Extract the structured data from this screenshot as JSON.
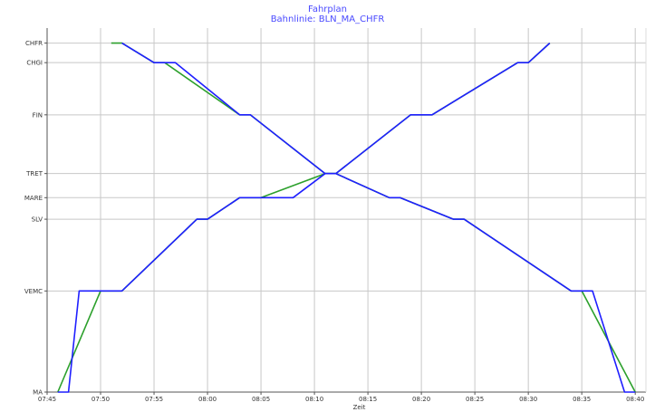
{
  "chart_data": {
    "type": "line",
    "title": "Fahrplan",
    "subtitle": "Bahnlinie: BLN_MA_CHFR",
    "xlabel": "Zeit",
    "ylabel": "",
    "x_ticks": [
      "07:45",
      "07:50",
      "07:55",
      "08:00",
      "08:05",
      "08:10",
      "08:15",
      "08:20",
      "08:25",
      "08:30",
      "08:35",
      "08:40"
    ],
    "x_range": [
      "07:45",
      "08:41"
    ],
    "y_stations": [
      {
        "name": "MA",
        "km": 0
      },
      {
        "name": "VEMC",
        "km": 15.5
      },
      {
        "name": "SLV",
        "km": 26.5
      },
      {
        "name": "MARE",
        "km": 29.8
      },
      {
        "name": "TRET",
        "km": 33.5
      },
      {
        "name": "FIN",
        "km": 42.5
      },
      {
        "name": "CHGI",
        "km": 50.5
      },
      {
        "name": "CHFR",
        "km": 53.5
      }
    ],
    "grid": true,
    "colors": {
      "planned": "#2ca02c",
      "actual": "#1f1fff",
      "title": "#4a4aff",
      "grid": "#c8c8c8"
    },
    "series": [
      {
        "color": "#2ca02c",
        "points": [
          [
            "07:46",
            "MA"
          ],
          [
            "07:50",
            "VEMC"
          ],
          [
            "07:52",
            "VEMC"
          ],
          [
            "07:59",
            "SLV"
          ],
          [
            "08:00",
            "SLV"
          ],
          [
            "08:03",
            "MARE"
          ],
          [
            "08:05",
            "MARE"
          ],
          [
            "08:11",
            "TRET"
          ],
          [
            "08:12",
            "TRET"
          ],
          [
            "08:19",
            "FIN"
          ],
          [
            "08:21",
            "FIN"
          ],
          [
            "08:29",
            "CHGI"
          ],
          [
            "08:30",
            "CHGI"
          ],
          [
            "08:32",
            "CHFR"
          ]
        ]
      },
      {
        "color": "#1f1fff",
        "points": [
          [
            "07:46",
            "MA"
          ],
          [
            "07:47",
            "MA"
          ],
          [
            "07:48",
            "VEMC"
          ],
          [
            "07:50",
            "VEMC"
          ],
          [
            "07:52",
            "VEMC"
          ],
          [
            "07:59",
            "SLV"
          ],
          [
            "08:00",
            "SLV"
          ],
          [
            "08:03",
            "MARE"
          ],
          [
            "08:05",
            "MARE"
          ],
          [
            "08:08",
            "MARE"
          ],
          [
            "08:11",
            "TRET"
          ],
          [
            "08:12",
            "TRET"
          ],
          [
            "08:19",
            "FIN"
          ],
          [
            "08:21",
            "FIN"
          ],
          [
            "08:29",
            "CHGI"
          ],
          [
            "08:30",
            "CHGI"
          ],
          [
            "08:32",
            "CHFR"
          ]
        ]
      },
      {
        "color": "#2ca02c",
        "points": [
          [
            "07:51",
            "CHFR"
          ],
          [
            "07:52",
            "CHFR"
          ],
          [
            "07:55",
            "CHGI"
          ],
          [
            "07:56",
            "CHGI"
          ],
          [
            "08:03",
            "FIN"
          ],
          [
            "08:04",
            "FIN"
          ],
          [
            "08:11",
            "TRET"
          ],
          [
            "08:12",
            "TRET"
          ],
          [
            "08:17",
            "MARE"
          ],
          [
            "08:18",
            "MARE"
          ],
          [
            "08:23",
            "SLV"
          ],
          [
            "08:24",
            "SLV"
          ],
          [
            "08:34",
            "VEMC"
          ],
          [
            "08:35",
            "VEMC"
          ],
          [
            "08:40",
            "MA"
          ]
        ]
      },
      {
        "color": "#1f1fff",
        "points": [
          [
            "07:52",
            "CHFR"
          ],
          [
            "07:55",
            "CHGI"
          ],
          [
            "07:57",
            "CHGI"
          ],
          [
            "08:03",
            "FIN"
          ],
          [
            "08:04",
            "FIN"
          ],
          [
            "08:11",
            "TRET"
          ],
          [
            "08:12",
            "TRET"
          ],
          [
            "08:17",
            "MARE"
          ],
          [
            "08:18",
            "MARE"
          ],
          [
            "08:23",
            "SLV"
          ],
          [
            "08:24",
            "SLV"
          ],
          [
            "08:34",
            "VEMC"
          ],
          [
            "08:36",
            "VEMC"
          ],
          [
            "08:39",
            "MA"
          ],
          [
            "08:40",
            "MA"
          ]
        ]
      }
    ]
  }
}
